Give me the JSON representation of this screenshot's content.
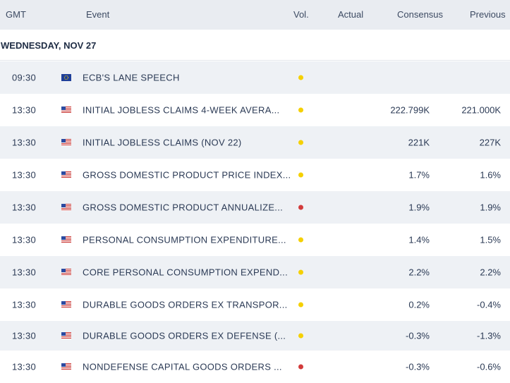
{
  "header": {
    "gmt": "GMT",
    "event": "Event",
    "vol": "Vol.",
    "actual": "Actual",
    "consensus": "Consensus",
    "previous": "Previous"
  },
  "date_label": "WEDNESDAY, NOV 27",
  "colors": {
    "medium_volatility": "#f5d000",
    "high_volatility": "#d23b3b",
    "header_bg": "#e9ecf1",
    "alt_row_bg": "#eef1f5"
  },
  "rows": [
    {
      "time": "09:30",
      "flag": "eu-flag-icon",
      "event": "ECB'S LANE SPEECH",
      "volatility": "medium",
      "actual": "",
      "consensus": "",
      "previous": ""
    },
    {
      "time": "13:30",
      "flag": "us-flag-icon",
      "event": "INITIAL JOBLESS CLAIMS 4-WEEK AVERA...",
      "volatility": "medium",
      "actual": "",
      "consensus": "222.799K",
      "previous": "221.000K"
    },
    {
      "time": "13:30",
      "flag": "us-flag-icon",
      "event": "INITIAL JOBLESS CLAIMS (NOV 22)",
      "volatility": "medium",
      "actual": "",
      "consensus": "221K",
      "previous": "227K"
    },
    {
      "time": "13:30",
      "flag": "us-flag-icon",
      "event": "GROSS DOMESTIC PRODUCT PRICE INDEX...",
      "volatility": "medium",
      "actual": "",
      "consensus": "1.7%",
      "previous": "1.6%"
    },
    {
      "time": "13:30",
      "flag": "us-flag-icon",
      "event": "GROSS DOMESTIC PRODUCT ANNUALIZE...",
      "volatility": "high",
      "actual": "",
      "consensus": "1.9%",
      "previous": "1.9%"
    },
    {
      "time": "13:30",
      "flag": "us-flag-icon",
      "event": "PERSONAL CONSUMPTION EXPENDITURE...",
      "volatility": "medium",
      "actual": "",
      "consensus": "1.4%",
      "previous": "1.5%"
    },
    {
      "time": "13:30",
      "flag": "us-flag-icon",
      "event": "CORE PERSONAL CONSUMPTION EXPEND...",
      "volatility": "medium",
      "actual": "",
      "consensus": "2.2%",
      "previous": "2.2%"
    },
    {
      "time": "13:30",
      "flag": "us-flag-icon",
      "event": "DURABLE GOODS ORDERS EX TRANSPOR...",
      "volatility": "medium",
      "actual": "",
      "consensus": "0.2%",
      "previous": "-0.4%"
    },
    {
      "time": "13:30",
      "flag": "us-flag-icon",
      "event": "DURABLE GOODS ORDERS EX DEFENSE (...",
      "volatility": "medium",
      "actual": "",
      "consensus": "-0.3%",
      "previous": "-1.3%"
    },
    {
      "time": "13:30",
      "flag": "us-flag-icon",
      "event": "NONDEFENSE CAPITAL GOODS ORDERS ...",
      "volatility": "high",
      "actual": "",
      "consensus": "-0.3%",
      "previous": "-0.6%"
    }
  ]
}
